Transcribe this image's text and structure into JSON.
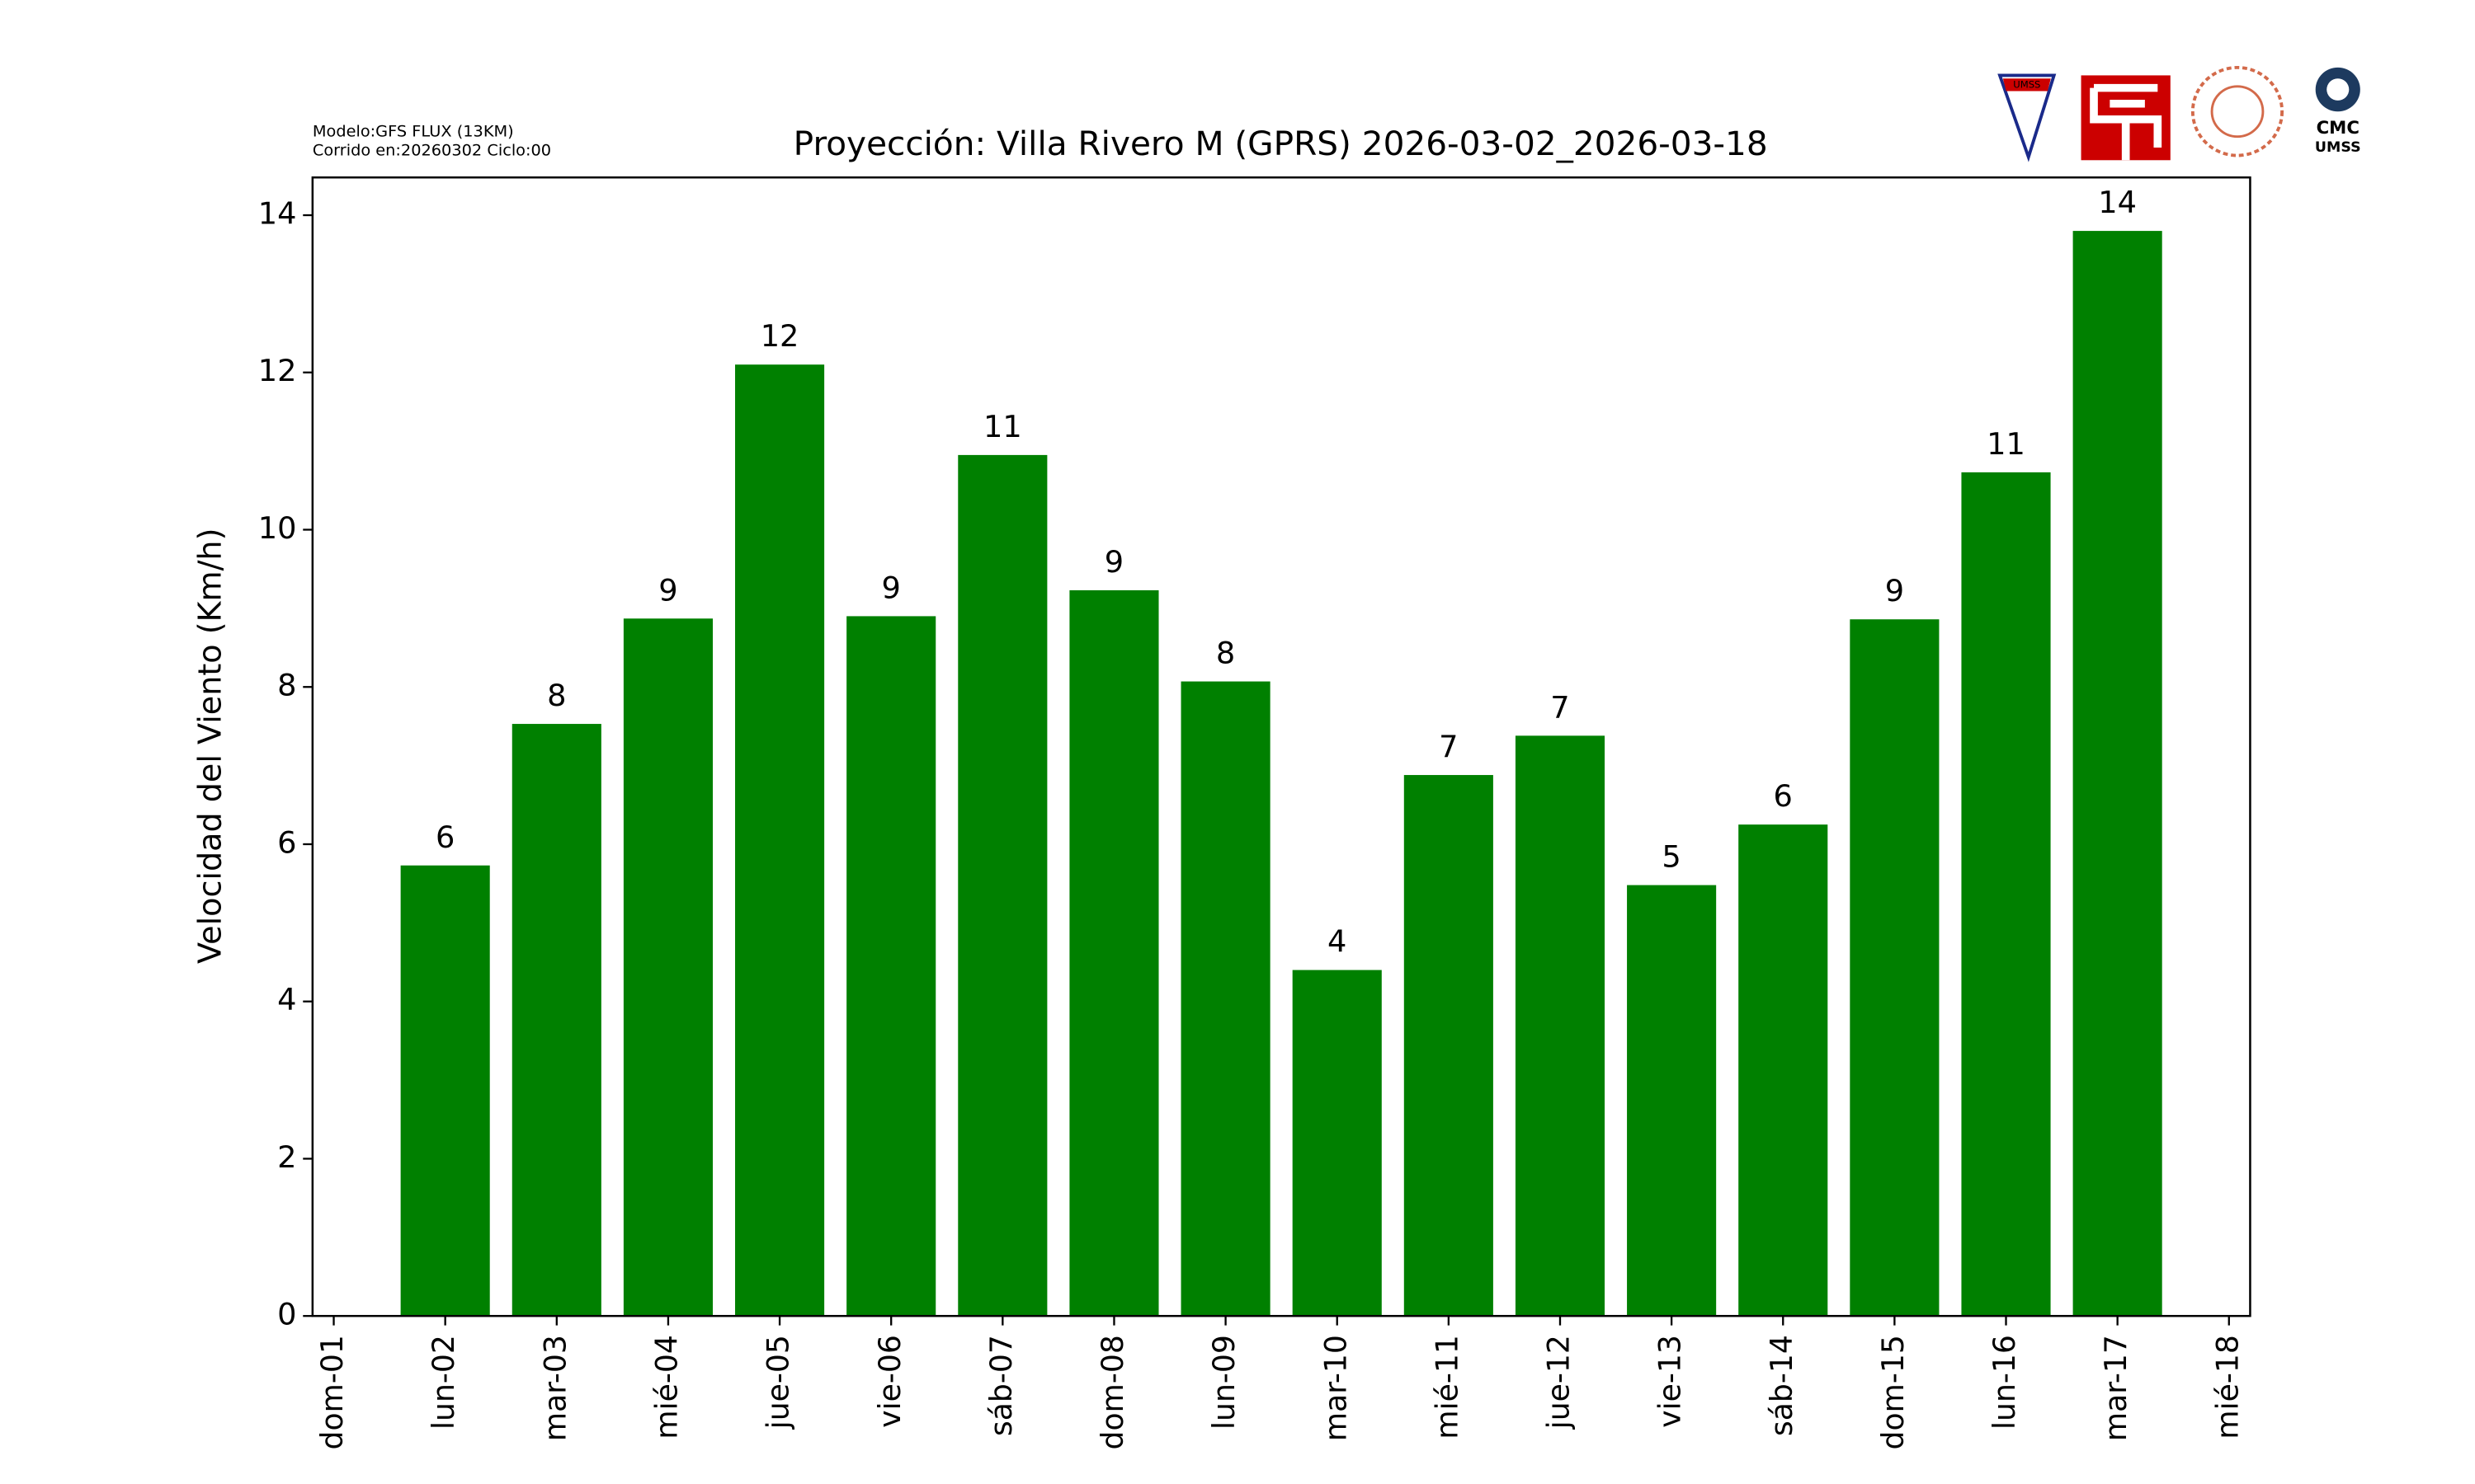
{
  "chart_data": {
    "type": "bar",
    "title": "Proyección: Villa Rivero M (GPRS)  2026-03-02_2026-03-18",
    "annotations": [
      "Modelo:GFS FLUX (13KM)",
      "Corrido en:20260302 Ciclo:00"
    ],
    "y_label": "Velocidad del Viento (Km/h)",
    "categories": [
      "dom-01",
      "lun-02",
      "mar-03",
      "mié-04",
      "jue-05",
      "vie-06",
      "sáb-07",
      "dom-08",
      "lun-09",
      "mar-10",
      "mié-11",
      "jue-12",
      "vie-13",
      "sáb-14",
      "dom-15",
      "lun-16",
      "mar-17",
      "mié-18"
    ],
    "values": [
      null,
      5.73,
      7.53,
      8.87,
      12.1,
      8.9,
      10.95,
      9.23,
      8.07,
      4.4,
      6.88,
      7.38,
      5.48,
      6.25,
      8.86,
      10.73,
      13.8,
      null
    ],
    "value_labels": [
      null,
      "6",
      "8",
      "9",
      "12",
      "9",
      "11",
      "9",
      "8",
      "4",
      "7",
      "7",
      "5",
      "6",
      "9",
      "11",
      "14",
      null
    ],
    "color": "#008000",
    "ylim": [
      0,
      14.48
    ],
    "yticks": [
      0,
      2,
      4,
      6,
      8,
      10,
      12,
      14
    ]
  },
  "logos": {
    "shield": "UMSS",
    "cmc": [
      "CMC",
      "UMSS"
    ]
  }
}
